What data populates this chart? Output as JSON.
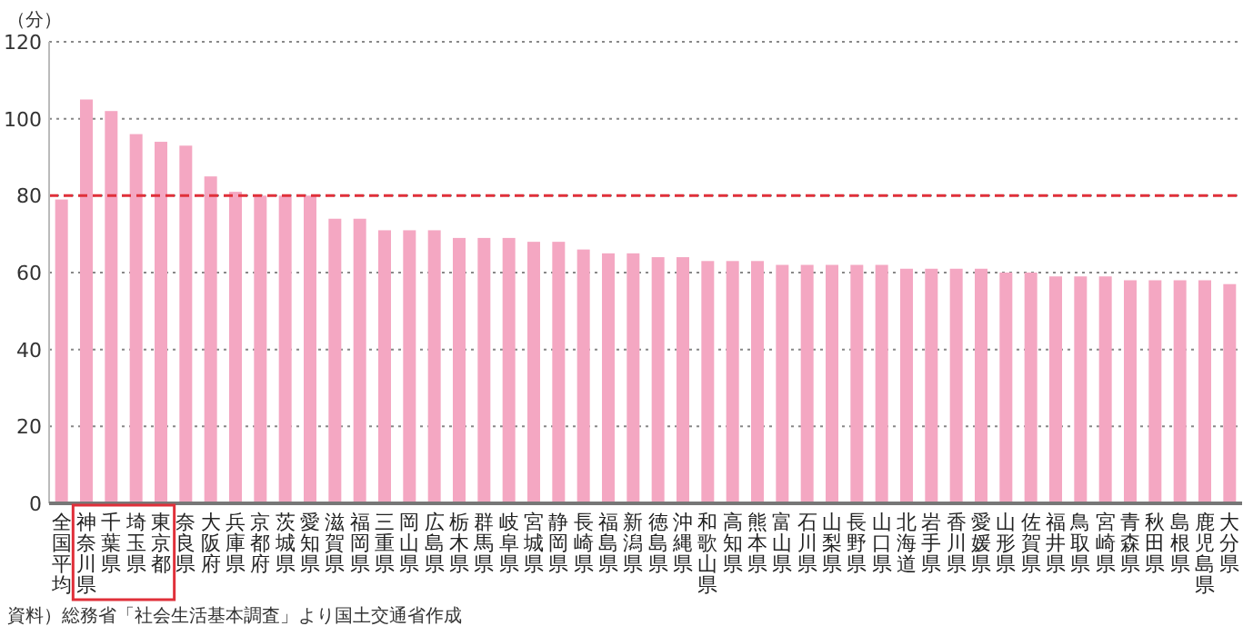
{
  "chart_data": {
    "type": "bar",
    "ylabel": "（分）",
    "categories": [
      "全国平均",
      "神奈川県",
      "千葉県",
      "埼玉県",
      "東京都",
      "奈良県",
      "大阪府",
      "兵庫県",
      "京都府",
      "茨城県",
      "愛知県",
      "滋賀県",
      "福岡県",
      "三重県",
      "岡山県",
      "広島県",
      "栃木県",
      "群馬県",
      "岐阜県",
      "宮城県",
      "静岡県",
      "長崎県",
      "福島県",
      "新潟県",
      "徳島県",
      "沖縄県",
      "和歌山県",
      "高知県",
      "熊本県",
      "富山県",
      "石川県",
      "山梨県",
      "長野県",
      "山口県",
      "北海道",
      "岩手県",
      "香川県",
      "愛媛県",
      "山形県",
      "佐賀県",
      "福井県",
      "鳥取県",
      "宮崎県",
      "青森県",
      "秋田県",
      "島根県",
      "鹿児島県",
      "大分県"
    ],
    "values": [
      79,
      105,
      102,
      96,
      94,
      93,
      85,
      81,
      80,
      80,
      80,
      74,
      74,
      71,
      71,
      71,
      69,
      69,
      69,
      68,
      68,
      66,
      65,
      65,
      64,
      64,
      63,
      63,
      63,
      62,
      62,
      62,
      62,
      62,
      61,
      61,
      61,
      61,
      60,
      60,
      59,
      59,
      59,
      58,
      58,
      58,
      58,
      57
    ],
    "color": "#f4a7c2",
    "ylim": [
      0,
      120
    ],
    "yticks": [
      0,
      20,
      40,
      60,
      80,
      100,
      120
    ],
    "grid": "y",
    "ref_lines": [
      {
        "axis": "y",
        "value": 80,
        "color": "#e0303a",
        "line_style": "dashed"
      }
    ],
    "annotations": [
      "資料）総務省「社会生活基本調査」より国土交通省作成"
    ]
  }
}
